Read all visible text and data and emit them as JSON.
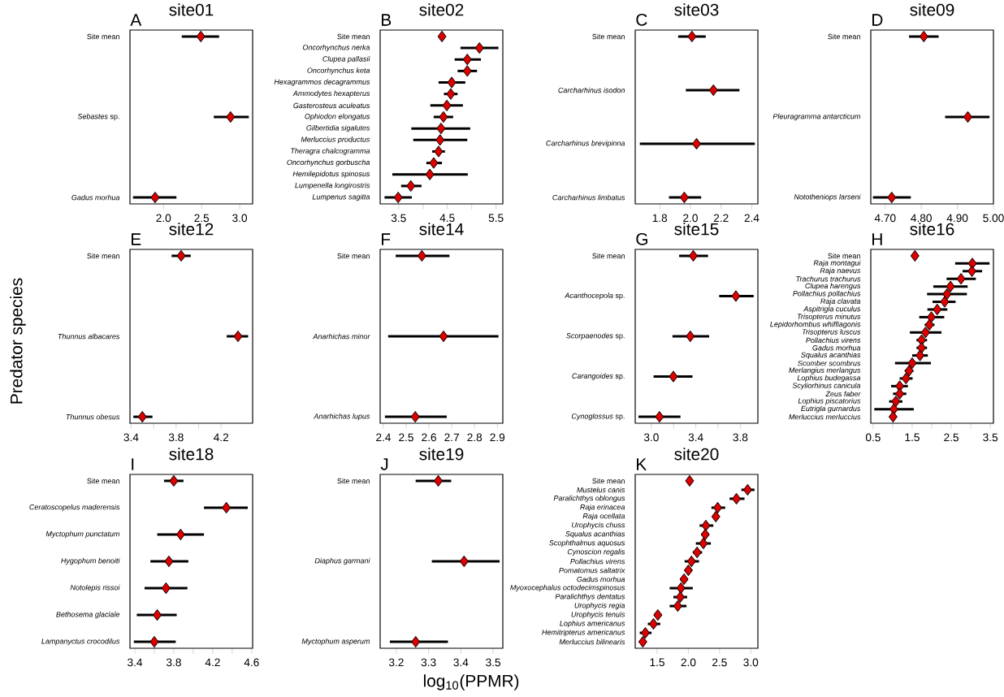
{
  "chart_data": [
    {
      "type": "scatter",
      "orientation": "horizontal",
      "title": "site01",
      "annotations": [
        "A"
      ],
      "marker": "diamond",
      "color": "#dd0000",
      "xlim": [
        1.56,
        3.17
      ],
      "xticks": [
        {
          "value": 2,
          "label": "2.0"
        },
        2.5,
        {
          "value": 3,
          "label": "3.0"
        }
      ],
      "categories": [
        "Site mean",
        "*Sebastes* sp.",
        "Gadus morhua"
      ],
      "values": [
        2.49,
        2.88,
        1.89
      ],
      "errors": [
        [
          2.24,
          2.73
        ],
        [
          2.66,
          3.12
        ],
        [
          1.6,
          2.17
        ]
      ]
    },
    {
      "type": "scatter",
      "orientation": "horizontal",
      "title": "site02",
      "annotations": [
        "B"
      ],
      "marker": "diamond",
      "color": "#dd0000",
      "xlim": [
        3.12,
        5.64
      ],
      "xticks": [
        3.5,
        {
          "value": 4,
          "label": null
        },
        4.5,
        {
          "value": 5,
          "label": null
        },
        5.5
      ],
      "categories": [
        "Site mean",
        "Oncorhynchus nerka",
        "Clupea pallasii",
        "Oncorhynchus keta",
        "Hexagrammos decagrammus",
        "Ammodytes hexapterus",
        "Gasterosteus aculeatus",
        "Ophiodon elongatus",
        "Gilbertidia sigalutes",
        "Merluccius productus",
        "Theragra chalcogramma",
        "Oncorhynchus gorbuscha",
        "Hemilepidotus spinosus",
        "Lumpenella longirostris",
        "Lumpenus sagitta"
      ],
      "values": [
        4.39,
        5.16,
        4.91,
        4.91,
        4.59,
        4.57,
        4.49,
        4.42,
        4.37,
        4.35,
        4.32,
        4.22,
        4.14,
        3.75,
        3.49
      ],
      "errors": [
        null,
        [
          4.77,
          5.55
        ],
        [
          4.65,
          5.19
        ],
        [
          4.71,
          5.11
        ],
        [
          4.32,
          4.87
        ],
        [
          4.43,
          4.71
        ],
        [
          4.15,
          4.82
        ],
        [
          4.22,
          4.62
        ],
        [
          3.76,
          4.97
        ],
        [
          3.8,
          4.91
        ],
        [
          4.19,
          4.45
        ],
        [
          4.07,
          4.39
        ],
        [
          3.37,
          4.92
        ],
        [
          3.55,
          3.97
        ],
        [
          3.21,
          3.77
        ]
      ]
    },
    {
      "type": "scatter",
      "orientation": "horizontal",
      "title": "site03",
      "annotations": [
        "C"
      ],
      "marker": "diamond",
      "color": "#dd0000",
      "xlim": [
        1.64,
        2.44
      ],
      "xticks": [
        1.8,
        {
          "value": 2,
          "label": "2.0"
        },
        2.2,
        2.4
      ],
      "categories": [
        "Site mean",
        "Carcharhinus isodon",
        "Carcharhinus brevipinna",
        "Carcharhinus limbatus"
      ],
      "values": [
        2.01,
        2.15,
        2.04,
        1.96
      ],
      "errors": [
        [
          1.92,
          2.1
        ],
        [
          1.97,
          2.32
        ],
        [
          1.67,
          2.42
        ],
        [
          1.86,
          2.07
        ]
      ]
    },
    {
      "type": "scatter",
      "orientation": "horizontal",
      "title": "site09",
      "annotations": [
        "D"
      ],
      "marker": "diamond",
      "color": "#dd0000",
      "xlim": [
        4.66,
        5.0
      ],
      "xticks": [
        {
          "value": 4.7,
          "label": "4.70"
        },
        {
          "value": 4.8,
          "label": "4.80"
        },
        {
          "value": 4.9,
          "label": "4.90"
        },
        {
          "value": 5,
          "label": "5.00"
        }
      ],
      "categories": [
        "Site mean",
        "Pleuragramma antarcticum",
        "Nototheniops larseni"
      ],
      "values": [
        4.807,
        4.929,
        4.718
      ],
      "errors": [
        [
          4.766,
          4.848
        ],
        [
          4.866,
          4.989
        ],
        [
          4.666,
          4.771
        ]
      ]
    },
    {
      "type": "scatter",
      "orientation": "horizontal",
      "title": "site12",
      "annotations": [
        "E"
      ],
      "ylabel": "Predator species",
      "marker": "diamond",
      "color": "#dd0000",
      "xlim": [
        3.39,
        4.48
      ],
      "xticks": [
        3.4,
        {
          "value": 3.6,
          "label": null
        },
        3.8,
        {
          "value": 4,
          "label": null
        },
        4.2
      ],
      "categories": [
        "Site mean",
        "Thunnus albacares",
        "Thunnus obesus"
      ],
      "values": [
        3.845,
        4.35,
        3.5
      ],
      "errors": [
        [
          3.76,
          3.93
        ],
        [
          4.25,
          4.44
        ],
        [
          3.42,
          3.59
        ]
      ]
    },
    {
      "type": "scatter",
      "orientation": "horizontal",
      "title": "site14",
      "annotations": [
        "F"
      ],
      "marker": "diamond",
      "color": "#dd0000",
      "xlim": [
        2.386,
        2.924
      ],
      "xticks": [
        2.4,
        2.5,
        2.6,
        2.7,
        2.8,
        2.9
      ],
      "categories": [
        "Site mean",
        "Anarhichas minor",
        "Anarhichas lupus"
      ],
      "values": [
        2.569,
        2.664,
        2.54
      ],
      "errors": [
        [
          2.454,
          2.69
        ],
        [
          2.421,
          2.905
        ],
        [
          2.407,
          2.678
        ]
      ]
    },
    {
      "type": "scatter",
      "orientation": "horizontal",
      "title": "site15",
      "annotations": [
        "G"
      ],
      "marker": "diamond",
      "color": "#dd0000",
      "xlim": [
        2.855,
        3.958
      ],
      "xticks": [
        {
          "value": 3,
          "label": "3.0"
        },
        {
          "value": 3.2,
          "label": null
        },
        3.4,
        {
          "value": 3.6,
          "label": null
        },
        3.8
      ],
      "categories": [
        "Site mean",
        "*Acanthocepola* sp.",
        "*Scorpaenodes* sp.",
        "*Carangoides* sp.",
        "*Cynoglossus* sp."
      ],
      "values": [
        3.377,
        3.76,
        3.35,
        3.198,
        3.073
      ],
      "errors": [
        [
          3.25,
          3.51
        ],
        [
          3.61,
          3.92
        ],
        [
          3.19,
          3.52
        ],
        [
          3.02,
          3.37
        ],
        [
          2.884,
          3.262
        ]
      ]
    },
    {
      "type": "scatter",
      "orientation": "horizontal",
      "title": "site16",
      "annotations": [
        "H"
      ],
      "marker": "diamond",
      "color": "#dd0000",
      "xlim": [
        0.44,
        3.58
      ],
      "xticks": [
        0.5,
        {
          "value": 1,
          "label": null
        },
        1.5,
        {
          "value": 2,
          "label": null
        },
        2.5,
        {
          "value": 3,
          "label": null
        },
        3.5
      ],
      "categories": [
        "Site mean",
        "Raja montagui",
        "Raja naevus",
        "Trachurus trachurus",
        "Clupea harengus",
        "Pollachius pollachius",
        "Raja clavata",
        "Aspitrigla cuculus",
        "Trisopterus minutus",
        "Lepidorhombus whiffiagonis",
        "Trisopterus luscus",
        "Pollachius virens",
        "Gadus morhua",
        "Squalus acanthias",
        "Scomber scombrus",
        "Merlangius merlangus",
        "Lophius budegassa",
        "Scyliorhinus canicula",
        "Zeus faber",
        "Lophius piscatorius",
        "Eutrigla gurnardus",
        "Merluccius merluccius"
      ],
      "values": [
        1.57,
        3.04,
        3.03,
        2.75,
        2.48,
        2.39,
        2.33,
        2.14,
        1.99,
        1.94,
        1.84,
        1.74,
        1.74,
        1.7,
        1.5,
        1.42,
        1.34,
        1.18,
        1.18,
        1.08,
        1.03,
        1.01
      ],
      "errors": [
        null,
        [
          2.6,
          3.48
        ],
        [
          2.79,
          3.29
        ],
        [
          2.38,
          3.13
        ],
        [
          2.04,
          2.92
        ],
        [
          1.88,
          2.9
        ],
        [
          2.02,
          2.61
        ],
        [
          1.89,
          2.4
        ],
        [
          1.68,
          2.32
        ],
        [
          1.82,
          2.07
        ],
        [
          1.44,
          2.25
        ],
        [
          1.61,
          1.88
        ],
        [
          1.61,
          1.88
        ],
        [
          1.5,
          1.9
        ],
        [
          1.06,
          1.98
        ],
        [
          1.31,
          1.53
        ],
        [
          1.18,
          1.51
        ],
        [
          0.96,
          1.39
        ],
        [
          1.01,
          1.35
        ],
        [
          0.91,
          1.25
        ],
        [
          0.53,
          1.54
        ],
        null
      ]
    },
    {
      "type": "scatter",
      "orientation": "horizontal",
      "title": "site18",
      "annotations": [
        "I"
      ],
      "marker": "diamond",
      "color": "#dd0000",
      "xlim": [
        3.35,
        4.61
      ],
      "xticks": [
        3.4,
        {
          "value": 3.6,
          "label": null
        },
        3.8,
        {
          "value": 4,
          "label": null
        },
        4.2,
        {
          "value": 4.4,
          "label": null
        },
        4.6
      ],
      "categories": [
        "Site mean",
        "Ceratoscopelus maderensis",
        "Myctophum punctatum",
        "Hygophum benoiti",
        "Notolepis rissoi",
        "Bethosema glaciale",
        "Lampanyctus crocodilus"
      ],
      "values": [
        3.8,
        4.34,
        3.87,
        3.75,
        3.72,
        3.63,
        3.6
      ],
      "errors": [
        [
          3.7,
          3.9
        ],
        [
          4.11,
          4.56
        ],
        [
          3.63,
          4.11
        ],
        [
          3.56,
          3.95
        ],
        [
          3.5,
          3.94
        ],
        [
          3.42,
          3.83
        ],
        [
          3.39,
          3.82
        ]
      ]
    },
    {
      "type": "scatter",
      "orientation": "horizontal",
      "title": "site19",
      "annotations": [
        "J"
      ],
      "xlabel": "log$_{10}$(PPMR)",
      "marker": "diamond",
      "color": "#dd0000",
      "xlim": [
        3.15,
        3.53
      ],
      "xticks": [
        3.2,
        3.3,
        3.4,
        3.5
      ],
      "categories": [
        "Site mean",
        "Diaphus garmani",
        "Myctophum asperum"
      ],
      "values": [
        3.33,
        3.41,
        3.26
      ],
      "errors": [
        [
          3.26,
          3.37
        ],
        [
          3.31,
          3.52
        ],
        [
          3.18,
          3.36
        ]
      ]
    },
    {
      "type": "scatter",
      "orientation": "horizontal",
      "title": "site20",
      "annotations": [
        "K"
      ],
      "marker": "diamond",
      "color": "#dd0000",
      "xlim": [
        1.148,
        3.114
      ],
      "xticks": [
        1.5,
        {
          "value": 2,
          "label": "2.0"
        },
        2.5,
        {
          "value": 3,
          "label": "3.0"
        }
      ],
      "categories": [
        "Site mean",
        "Mustelus canis",
        "Paralichthys oblongus",
        "Raja erinacea",
        "Raja ocellata",
        "Urophycis chuss",
        "Squalus acanthias",
        "Scophthalmus aquosus",
        "Cynoscion regalis",
        "Pollachius virens",
        "Pomatomus saltatrix",
        "Gadus morhua",
        "Myoxocephalus octodecimspinosus",
        "Paralichthys dentatus",
        "Urophycis regia",
        "Urophycis tenuis",
        "Lophius americanus",
        "Hemitripterus americanus",
        "Merluccius bilinearis"
      ],
      "values": [
        2.02,
        2.95,
        2.77,
        2.47,
        2.44,
        2.28,
        2.27,
        2.24,
        2.14,
        2.05,
        2.0,
        1.93,
        1.88,
        1.87,
        1.83,
        1.51,
        1.44,
        1.31,
        1.27
      ],
      "errors": [
        null,
        [
          2.85,
          3.06
        ],
        [
          2.66,
          2.9
        ],
        [
          2.37,
          2.59
        ],
        null,
        [
          2.18,
          2.4
        ],
        [
          2.21,
          2.33
        ],
        [
          2.12,
          2.36
        ],
        [
          2.07,
          2.22
        ],
        [
          1.94,
          2.17
        ],
        [
          1.94,
          2.06
        ],
        [
          1.87,
          1.99
        ],
        [
          1.7,
          2.07
        ],
        [
          1.76,
          1.98
        ],
        [
          1.7,
          1.97
        ],
        [
          1.45,
          1.57
        ],
        [
          1.35,
          1.55
        ],
        [
          1.22,
          1.41
        ],
        null
      ]
    }
  ]
}
